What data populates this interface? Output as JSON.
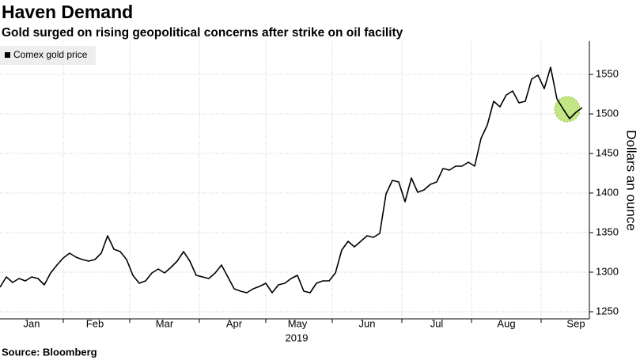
{
  "chart_data": {
    "type": "line",
    "title": "Haven Demand",
    "subtitle": "Gold surged on rising geopolitical concerns after strike on oil facility",
    "x_label": "2019",
    "y_label": "Dollars an ounce",
    "source": "Source: Bloomberg",
    "categories": [
      null,
      null,
      null,
      null,
      null,
      "Jan",
      null,
      null,
      null,
      null,
      null,
      null,
      null,
      null,
      null,
      "Feb",
      null,
      null,
      null,
      null,
      null,
      null,
      null,
      null,
      null,
      null,
      "Mar",
      null,
      null,
      null,
      null,
      null,
      null,
      null,
      null,
      null,
      null,
      "Apr",
      null,
      null,
      null,
      null,
      null,
      null,
      null,
      null,
      null,
      "May",
      null,
      null,
      null,
      null,
      null,
      null,
      null,
      null,
      null,
      null,
      "Jun",
      null,
      null,
      null,
      null,
      null,
      null,
      null,
      null,
      null,
      null,
      "Jul",
      null,
      null,
      null,
      null,
      null,
      null,
      null,
      null,
      null,
      null,
      "Aug",
      null,
      null,
      null,
      null,
      null,
      null,
      null,
      null,
      null,
      null,
      "Sep",
      null
    ],
    "series": [
      {
        "name": "Comex gold price",
        "color": "#000000",
        "values": [
          1281,
          1294,
          1287,
          1292,
          1289,
          1294,
          1292,
          1284,
          1299,
          1309,
          1318,
          1324,
          1319,
          1316,
          1314,
          1316,
          1324,
          1346,
          1329,
          1326,
          1316,
          1296,
          1286,
          1289,
          1299,
          1304,
          1299,
          1306,
          1314,
          1326,
          1314,
          1296,
          1294,
          1292,
          1299,
          1309,
          1294,
          1279,
          1276,
          1274,
          1279,
          1282,
          1286,
          1274,
          1284,
          1286,
          1292,
          1296,
          1276,
          1274,
          1286,
          1289,
          1289,
          1299,
          1328,
          1339,
          1332,
          1339,
          1346,
          1344,
          1349,
          1399,
          1416,
          1414,
          1389,
          1419,
          1401,
          1404,
          1411,
          1414,
          1431,
          1429,
          1434,
          1434,
          1439,
          1434,
          1469,
          1486,
          1516,
          1509,
          1524,
          1529,
          1514,
          1516,
          1544,
          1549,
          1532,
          1559,
          1519,
          1506,
          1494,
          1502,
          1508
        ]
      }
    ],
    "ylim": [
      1241,
      1592
    ],
    "yticks": [
      1250,
      1300,
      1350,
      1400,
      1450,
      1500,
      1550
    ],
    "grid": true
  }
}
